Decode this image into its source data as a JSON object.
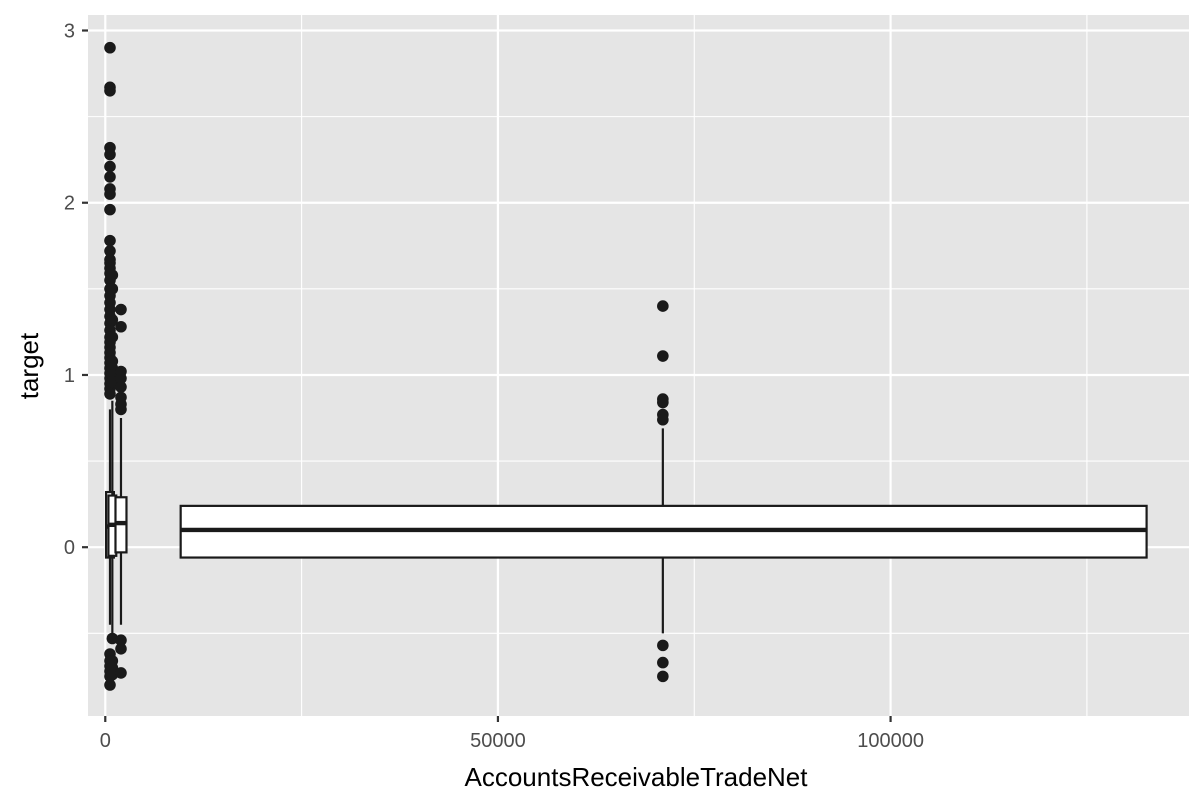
{
  "chart_data": {
    "type": "boxplot",
    "title": "",
    "xlabel": "AccountsReceivableTradeNet",
    "ylabel": "target",
    "xlim": [
      -2200,
      138000
    ],
    "ylim": [
      -0.98,
      3.09
    ],
    "x_ticks": [
      {
        "value": 0,
        "label": "0"
      },
      {
        "value": 50000,
        "label": "50000"
      },
      {
        "value": 100000,
        "label": "100000"
      }
    ],
    "x_minor_ticks": [
      25000,
      75000,
      125000
    ],
    "y_ticks": [
      {
        "value": 0,
        "label": "0"
      },
      {
        "value": 1,
        "label": "1"
      },
      {
        "value": 2,
        "label": "2"
      },
      {
        "value": 3,
        "label": "3"
      }
    ],
    "y_minor_ticks": [
      -0.5,
      0.5,
      1.5,
      2.5
    ],
    "grid": true,
    "colors": {
      "panel": "#e5e5e5",
      "grid": "#ffffff",
      "box_fill": "#ffffff",
      "line": "#1a1a1a",
      "point": "#1a1a1a"
    },
    "boxes": [
      {
        "x": 600,
        "xmin": 100,
        "xmax": 1100,
        "q1": -0.06,
        "median": 0.12,
        "q3": 0.32,
        "whisker_low": -0.45,
        "whisker_high": 0.8,
        "outliers": [
          2.9,
          2.67,
          2.65,
          2.32,
          2.28,
          2.21,
          2.15,
          2.08,
          2.05,
          1.96,
          1.78,
          1.72,
          1.67,
          1.65,
          1.62,
          1.59,
          1.55,
          1.5,
          1.46,
          1.42,
          1.38,
          1.34,
          1.3,
          1.26,
          1.22,
          1.19,
          1.16,
          1.13,
          1.1,
          1.07,
          1.04,
          1.01,
          0.98,
          0.95,
          0.92,
          0.89,
          -0.62,
          -0.66,
          -0.69,
          -0.72,
          -0.75,
          -0.8
        ]
      },
      {
        "x": 900,
        "xmin": 400,
        "xmax": 1400,
        "q1": -0.05,
        "median": 0.13,
        "q3": 0.3,
        "whisker_low": -0.5,
        "whisker_high": 0.85,
        "outliers": [
          1.58,
          1.5,
          1.32,
          1.22,
          1.08,
          1.04,
          1.0,
          0.96,
          -0.53,
          -0.66,
          -0.7,
          -0.74
        ]
      },
      {
        "x": 2000,
        "xmin": 1300,
        "xmax": 2700,
        "q1": -0.03,
        "median": 0.14,
        "q3": 0.29,
        "whisker_low": -0.45,
        "whisker_high": 0.75,
        "outliers": [
          1.38,
          1.28,
          1.02,
          0.98,
          0.93,
          0.87,
          0.83,
          0.8,
          -0.54,
          -0.59,
          -0.73
        ]
      },
      {
        "x": 71000,
        "xmin": 9600,
        "xmax": 132600,
        "q1": -0.06,
        "median": 0.1,
        "q3": 0.24,
        "whisker_low": -0.5,
        "whisker_high": 0.69,
        "outliers": [
          1.4,
          1.11,
          0.86,
          0.84,
          0.77,
          0.74,
          -0.57,
          -0.67,
          -0.75
        ]
      }
    ]
  }
}
